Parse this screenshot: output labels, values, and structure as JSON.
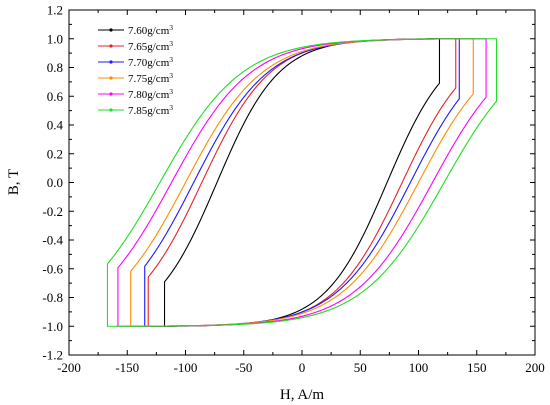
{
  "chart_data": {
    "type": "line",
    "xlabel": "H, A/m",
    "ylabel": "B, T",
    "xlim": [
      -200,
      200
    ],
    "ylim": [
      -1.2,
      1.2
    ],
    "x_ticks": [
      -200,
      -150,
      -100,
      -50,
      0,
      50,
      100,
      150,
      200
    ],
    "y_ticks": [
      1.2,
      1.0,
      0.8,
      0.6,
      0.4,
      0.2,
      0.0,
      -0.2,
      -0.4,
      -0.6,
      -0.8,
      -1.0,
      -1.2
    ],
    "x_tick_labels": [
      "-200",
      "-150",
      "-100",
      "-50",
      "0",
      "50",
      "100",
      "150",
      "200"
    ],
    "y_tick_labels": [
      "1.2",
      "1.0",
      "0.8",
      "0.6",
      "0.4",
      "0.2",
      "0.0",
      "-0.2",
      "-0.4",
      "-0.6",
      "-0.8",
      "-1.0",
      "-1.2"
    ],
    "grid": false,
    "legend_position": "top-left",
    "series": [
      {
        "name": "7.60g/cm",
        "name_sup": "3",
        "color": "#000000",
        "Hmax": 118,
        "Bmax": 1.0,
        "Hc": 73,
        "Br": 0.88,
        "shape": 2.6,
        "x": [
          118,
          115,
          111,
          104,
          92,
          78,
          73,
          60,
          40,
          10,
          -30,
          -60,
          -95,
          -116,
          -118
        ],
        "y": [
          1.0,
          0.98,
          0.94,
          0.86,
          0.6,
          0.15,
          0.0,
          -0.3,
          -0.55,
          -0.75,
          -0.9,
          -0.95,
          -0.985,
          -0.999,
          -1.0
        ]
      },
      {
        "name": "7.65g/cm",
        "name_sup": "3",
        "color": "#e8202a",
        "Hmax": 132,
        "Bmax": 1.0,
        "Hc": 86,
        "Br": 0.9,
        "shape": 2.5,
        "x": [
          132,
          128,
          122,
          112,
          98,
          88,
          86,
          70,
          50,
          20,
          -20,
          -60,
          -100,
          -128,
          -132
        ],
        "y": [
          1.0,
          0.98,
          0.93,
          0.82,
          0.55,
          0.12,
          0.0,
          -0.3,
          -0.55,
          -0.75,
          -0.88,
          -0.94,
          -0.98,
          -0.999,
          -1.0
        ]
      },
      {
        "name": "7.70g/cm",
        "name_sup": "3",
        "color": "#1a1aff",
        "Hmax": 135,
        "Bmax": 1.0,
        "Hc": 93,
        "Br": 0.9,
        "shape": 2.4,
        "x": [
          135,
          131,
          125,
          115,
          103,
          95,
          93,
          76,
          55,
          25,
          -15,
          -55,
          -100,
          -130,
          -135
        ],
        "y": [
          1.0,
          0.98,
          0.93,
          0.82,
          0.55,
          0.12,
          0.0,
          -0.3,
          -0.55,
          -0.75,
          -0.88,
          -0.94,
          -0.98,
          -0.999,
          -1.0
        ]
      },
      {
        "name": "7.75g/cm",
        "name_sup": "3",
        "color": "#ff8c00",
        "Hmax": 147,
        "Bmax": 1.0,
        "Hc": 100,
        "Br": 0.91,
        "shape": 2.3,
        "x": [
          147,
          142,
          136,
          125,
          112,
          102,
          100,
          82,
          60,
          28,
          -15,
          -60,
          -110,
          -142,
          -147
        ],
        "y": [
          1.0,
          0.98,
          0.93,
          0.82,
          0.55,
          0.12,
          0.0,
          -0.3,
          -0.55,
          -0.75,
          -0.88,
          -0.94,
          -0.98,
          -0.999,
          -1.0
        ]
      },
      {
        "name": "7.80g/cm",
        "name_sup": "3",
        "color": "#ff00ff",
        "Hmax": 158,
        "Bmax": 1.0,
        "Hc": 112,
        "Br": 0.93,
        "shape": 2.1,
        "x": [
          158,
          153,
          146,
          136,
          124,
          114,
          112,
          92,
          68,
          34,
          -10,
          -60,
          -115,
          -152,
          -158
        ],
        "y": [
          1.0,
          0.98,
          0.93,
          0.82,
          0.55,
          0.12,
          0.0,
          -0.3,
          -0.55,
          -0.75,
          -0.88,
          -0.94,
          -0.98,
          -0.999,
          -1.0
        ]
      },
      {
        "name": "7.85g/cm",
        "name_sup": "3",
        "color": "#22dd22",
        "Hmax": 167,
        "Bmax": 1.0,
        "Hc": 122,
        "Br": 0.94,
        "shape": 2.0,
        "x": [
          167,
          162,
          155,
          145,
          133,
          124,
          122,
          100,
          75,
          40,
          -5,
          -60,
          -120,
          -160,
          -167
        ],
        "y": [
          1.0,
          0.98,
          0.93,
          0.82,
          0.55,
          0.12,
          0.0,
          -0.3,
          -0.55,
          -0.75,
          -0.88,
          -0.94,
          -0.98,
          -0.999,
          -1.0
        ]
      }
    ]
  }
}
